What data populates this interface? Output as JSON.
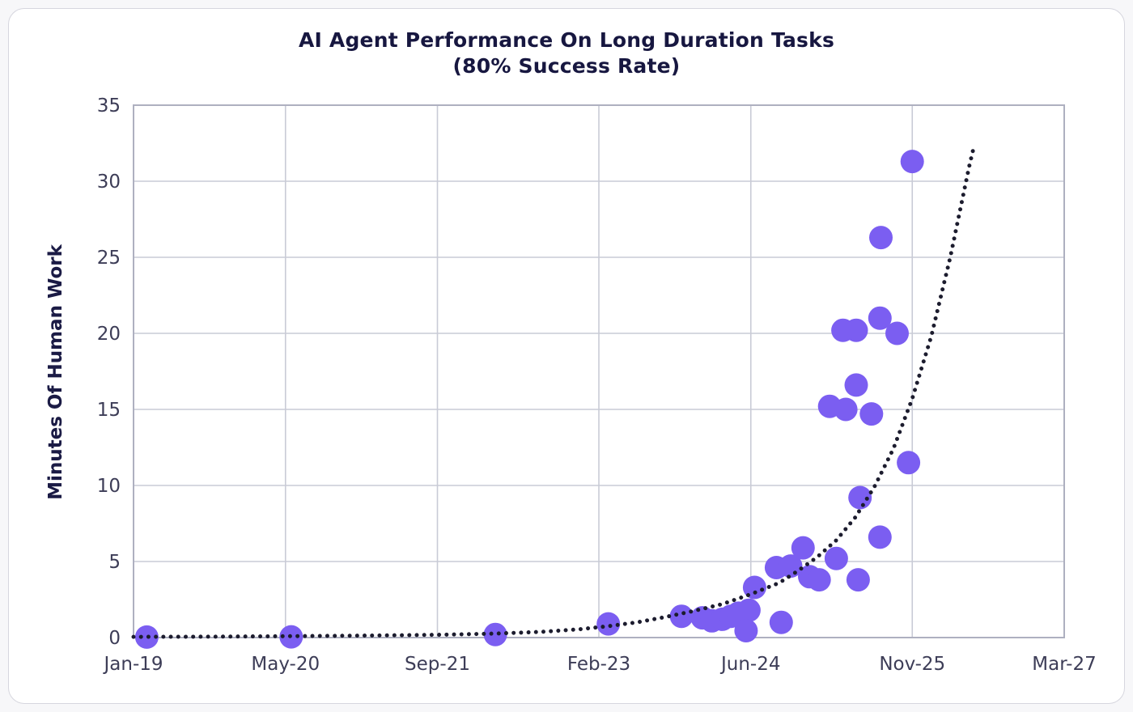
{
  "header": {
    "title": "AI Agent Performance On Long Duration Tasks",
    "subtitle": "(80% Success Rate)"
  },
  "chart_data": {
    "type": "scatter",
    "title": "AI Agent Performance On Long Duration Tasks",
    "subtitle": "(80% Success Rate)",
    "xlabel": "",
    "ylabel": "Minutes Of Human Work",
    "ylim": [
      0,
      35
    ],
    "y_ticks": [
      0,
      5,
      10,
      15,
      20,
      25,
      30,
      35
    ],
    "x_range_months": [
      0,
      98
    ],
    "x_ticks": [
      {
        "label": "Jan-19",
        "month": 0
      },
      {
        "label": "May-20",
        "month": 16
      },
      {
        "label": "Sep-21",
        "month": 32
      },
      {
        "label": "Feb-23",
        "month": 49
      },
      {
        "label": "Jun-24",
        "month": 65
      },
      {
        "label": "Nov-25",
        "month": 82
      },
      {
        "label": "Mar-27",
        "month": 98
      }
    ],
    "grid": true,
    "legend_position": "none",
    "colors": {
      "point": "#7b5ef1",
      "trend": "#1c1c2e",
      "grid": "#c9cbd6",
      "axis_box": "#aeb0c0",
      "tick_text": "#3d3d57",
      "title_text": "#171740",
      "axis_label_text": "#1b1b45",
      "card_border": "#d6d6de",
      "card_bg": "#ffffff"
    },
    "points": [
      {
        "label": "Feb-19",
        "month": 1.4,
        "minutes": 0.03
      },
      {
        "label": "May-20",
        "month": 16.6,
        "minutes": 0.05
      },
      {
        "label": "Mar-22",
        "month": 38.1,
        "minutes": 0.2
      },
      {
        "label": "Mar-23",
        "month": 50.0,
        "minutes": 0.9
      },
      {
        "label": "Nov-23",
        "month": 57.7,
        "minutes": 1.4
      },
      {
        "label": "Jan-24",
        "month": 59.9,
        "minutes": 1.3
      },
      {
        "label": "Feb-24",
        "month": 60.9,
        "minutes": 1.1
      },
      {
        "label": "Mar-24",
        "month": 62.0,
        "minutes": 1.2
      },
      {
        "label": "Apr-24",
        "month": 62.9,
        "minutes": 1.4
      },
      {
        "label": "May-24",
        "month": 63.7,
        "minutes": 1.6
      },
      {
        "label": "Jun-24",
        "month": 64.8,
        "minutes": 1.8
      },
      {
        "label": "May-24",
        "month": 64.5,
        "minutes": 0.45
      },
      {
        "label": "Jul-24",
        "month": 65.4,
        "minutes": 3.3
      },
      {
        "label": "Sep-24",
        "month": 68.2,
        "minutes": 1.0
      },
      {
        "label": "Sep-24",
        "month": 67.7,
        "minutes": 4.6
      },
      {
        "label": "Oct-24",
        "month": 69.2,
        "minutes": 4.7
      },
      {
        "label": "Nov-24",
        "month": 70.5,
        "minutes": 5.9
      },
      {
        "label": "Dec-24",
        "month": 71.2,
        "minutes": 4.0
      },
      {
        "label": "Jan-25",
        "month": 72.2,
        "minutes": 3.8
      },
      {
        "label": "Mar-25",
        "month": 74.0,
        "minutes": 5.2
      },
      {
        "label": "May-25",
        "month": 76.3,
        "minutes": 3.8
      },
      {
        "label": "Jun-25",
        "month": 76.5,
        "minutes": 9.2
      },
      {
        "label": "Aug-25",
        "month": 78.6,
        "minutes": 6.6
      },
      {
        "label": "Feb-25",
        "month": 73.3,
        "minutes": 15.2
      },
      {
        "label": "Apr-25",
        "month": 75.0,
        "minutes": 15.0
      },
      {
        "label": "Jul-25",
        "month": 77.7,
        "minutes": 14.7
      },
      {
        "label": "May-25",
        "month": 76.1,
        "minutes": 16.6
      },
      {
        "label": "Apr-25",
        "month": 74.7,
        "minutes": 20.2
      },
      {
        "label": "May-25",
        "month": 76.1,
        "minutes": 20.2
      },
      {
        "label": "Aug-25",
        "month": 78.6,
        "minutes": 21.0
      },
      {
        "label": "Sep-25",
        "month": 80.4,
        "minutes": 20.0
      },
      {
        "label": "Nov-25",
        "month": 81.6,
        "minutes": 11.5
      },
      {
        "label": "Aug-25",
        "month": 78.7,
        "minutes": 26.3
      },
      {
        "label": "Oct-25",
        "month": 82.0,
        "minutes": 31.3
      }
    ],
    "trendline": {
      "style": "dotted",
      "samples": [
        [
          0,
          0.05
        ],
        [
          8,
          0.06
        ],
        [
          16,
          0.09
        ],
        [
          24,
          0.13
        ],
        [
          32,
          0.18
        ],
        [
          38,
          0.26
        ],
        [
          43,
          0.38
        ],
        [
          47,
          0.55
        ],
        [
          50,
          0.75
        ],
        [
          53,
          1.0
        ],
        [
          56,
          1.35
        ],
        [
          59,
          1.75
        ],
        [
          62,
          2.2
        ],
        [
          65,
          2.85
        ],
        [
          68,
          3.6
        ],
        [
          70,
          4.4
        ],
        [
          72,
          5.3
        ],
        [
          74,
          6.4
        ],
        [
          76,
          7.9
        ],
        [
          78,
          9.9
        ],
        [
          80,
          12.4
        ],
        [
          82,
          15.7
        ],
        [
          84,
          19.8
        ],
        [
          86,
          25.0
        ],
        [
          88,
          31.0
        ],
        [
          88.5,
          32.3
        ]
      ]
    }
  }
}
